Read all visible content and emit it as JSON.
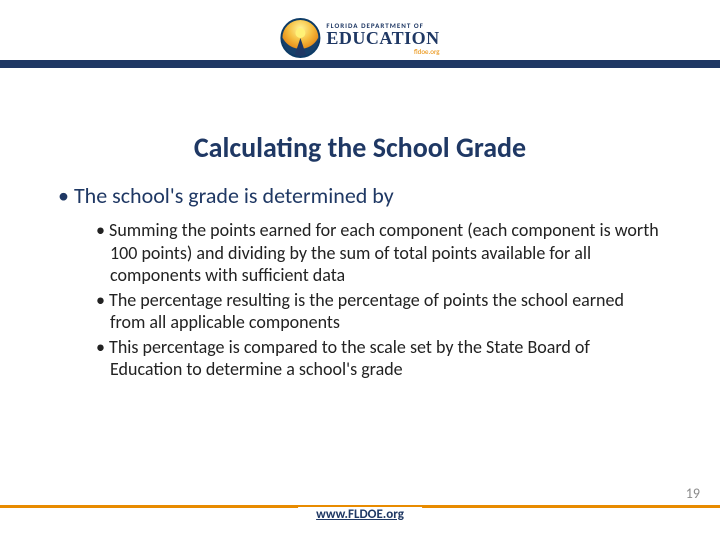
{
  "logo": {
    "line1": "FLORIDA DEPARTMENT OF",
    "line2": "EDUCATION",
    "line3": "fldoe.org"
  },
  "title": "Calculating the School Grade",
  "bullet_level1": "The school's grade is determined by",
  "bullets_level2": [
    "Summing the points earned for each component (each component is worth 100 points) and dividing by the sum of total points available for all components with sufficient data",
    "The percentage resulting is the percentage of points the school earned from all applicable components",
    "This percentage is compared to the scale set by the State Board of Education to determine a school's grade"
  ],
  "footer_link": "www.FLDOE.org",
  "page_number": "19",
  "colors": {
    "header_bar": "#1f3864",
    "title": "#1f3864",
    "footer_bar": "#e88b00",
    "body_text": "#222222"
  }
}
